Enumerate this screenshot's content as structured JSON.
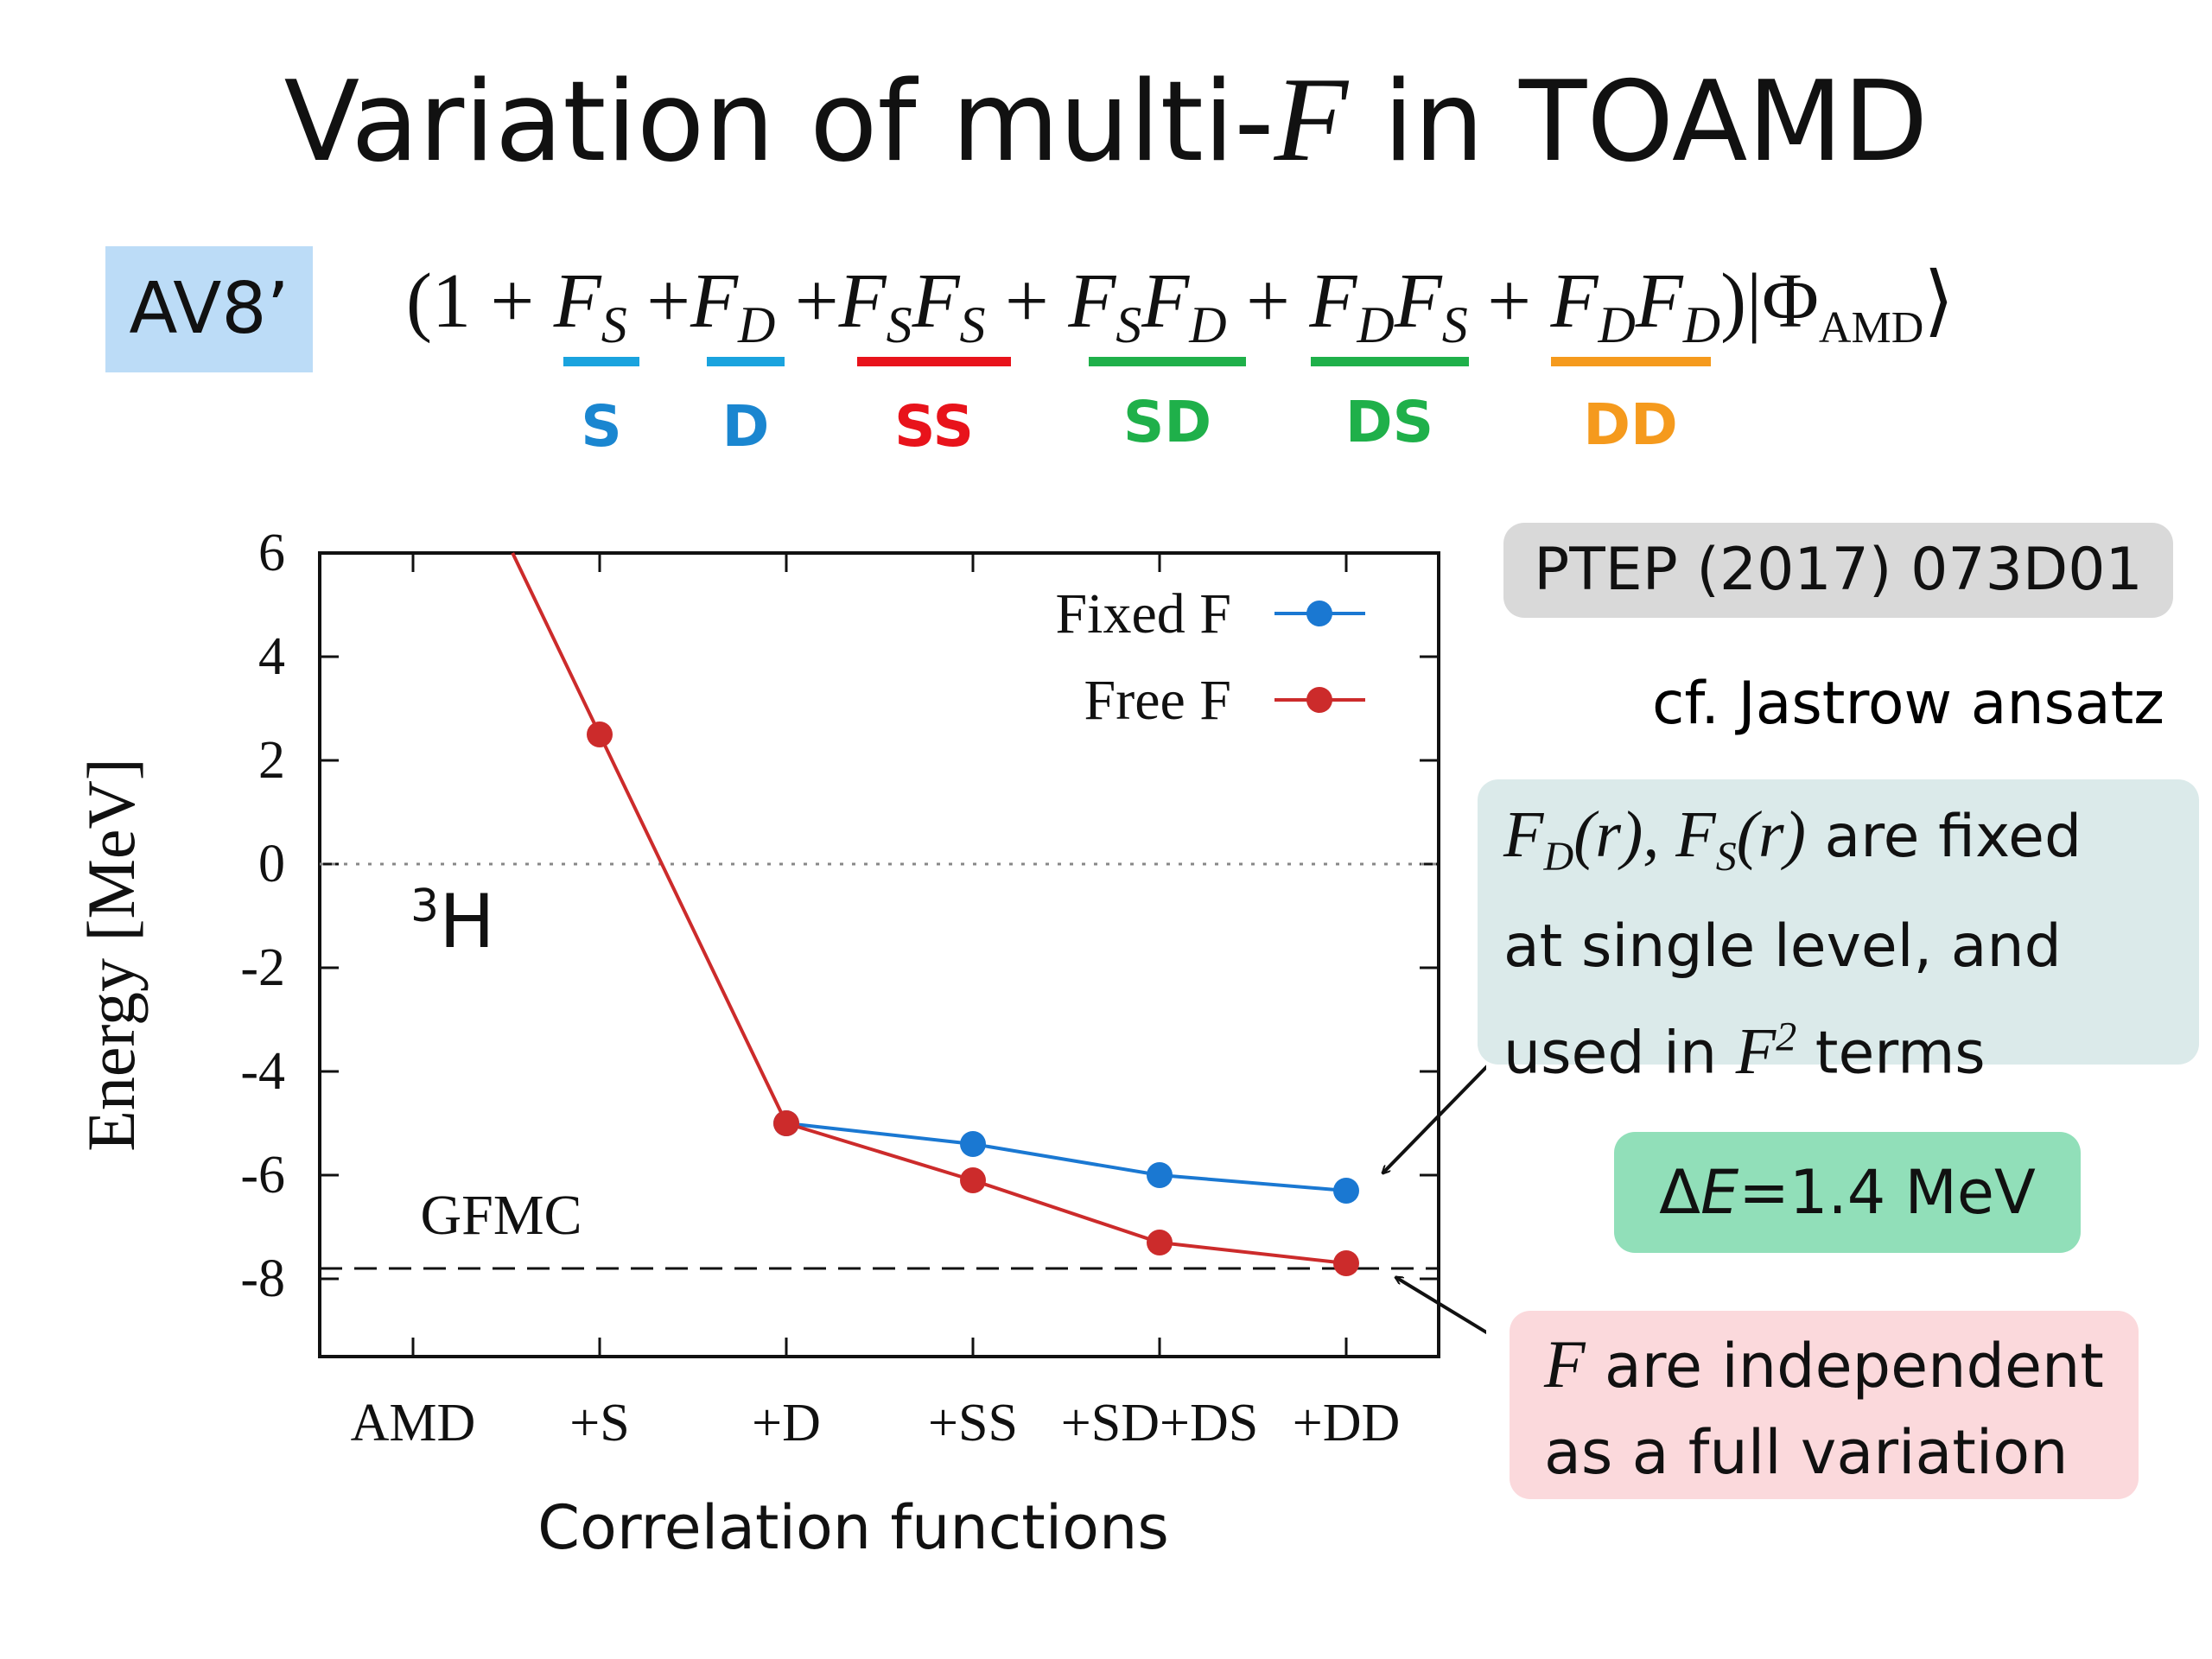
{
  "title": {
    "prefix": "Variation of multi-",
    "var": "F",
    "suffix": " in TOAMD"
  },
  "potential_label": "AV8’",
  "formula": {
    "open": "(1 + ",
    "plus": "+",
    "ket": "|Φ",
    "ket_sub": "AMD",
    "ket_close": "⟩",
    "close": ")"
  },
  "term_labels": [
    {
      "label": "S",
      "color": "#1a86d0"
    },
    {
      "label": "D",
      "color": "#1a86d0"
    },
    {
      "label": "SS",
      "color": "#e8131b"
    },
    {
      "label": "SD",
      "color": "#1fb04a"
    },
    {
      "label": "DS",
      "color": "#1fb04a"
    },
    {
      "label": "DD",
      "color": "#f59a1d"
    }
  ],
  "annotations": {
    "reference": "PTEP (2017) 073D01",
    "cf": "cf. Jastrow ansatz",
    "fixed_box": {
      "line1_suffix": " are fixed",
      "line2": "at single level, and",
      "line3_prefix": "used in ",
      "line3_suffix": " terms"
    },
    "delta_e": {
      "prefix": "Δ",
      "var": "E",
      "suffix": "=1.4 MeV"
    },
    "free_box": {
      "line1_suffix": " are independent",
      "line2": "as a full variation"
    }
  },
  "chart_data": {
    "type": "line",
    "xlabel": "Correlation functions",
    "ylabel": "Energy [MeV]",
    "categories": [
      "AMD",
      "+S",
      "+D",
      "+SS",
      "+SD+DS",
      "+DD"
    ],
    "ylim": [
      -9.5,
      6
    ],
    "yticks": [
      6,
      4,
      2,
      0,
      -2,
      -4,
      -6,
      -8
    ],
    "nucleus": "3H",
    "series": [
      {
        "name": "Fixed F",
        "color": "#1a78d2",
        "values": [
          null,
          null,
          -5.0,
          -5.4,
          -6.0,
          -6.3
        ]
      },
      {
        "name": "Free F",
        "color": "#cc2b2b",
        "values": [
          null,
          2.5,
          -5.0,
          -6.1,
          -7.3,
          -7.7
        ],
        "line_from_above": 6.0
      },
      {
        "name": "GFMC",
        "style": "dashed",
        "constant": -7.8
      }
    ],
    "reference_line_zero": "dotted",
    "legend": "top-right"
  }
}
